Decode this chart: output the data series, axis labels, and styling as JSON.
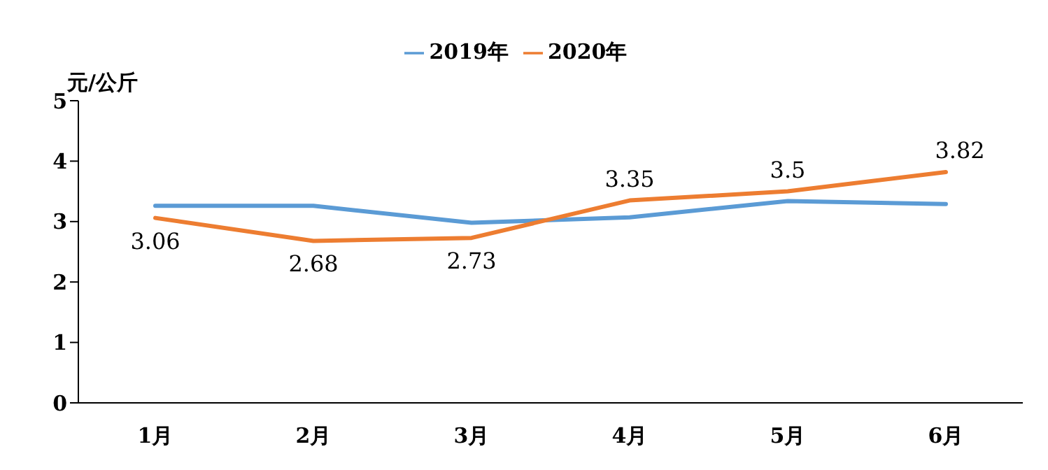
{
  "chart_data": {
    "type": "line",
    "ylabel": "元/公斤",
    "categories": [
      "1月",
      "2月",
      "3月",
      "4月",
      "5月",
      "6月"
    ],
    "series": [
      {
        "name": "2019年",
        "color": "#5b9bd5",
        "values": [
          3.26,
          3.26,
          2.98,
          3.07,
          3.34,
          3.29
        ]
      },
      {
        "name": "2020年",
        "color": "#ed7d31",
        "values": [
          3.06,
          2.68,
          2.73,
          3.35,
          3.5,
          3.82
        ],
        "value_labels": [
          "3.06",
          "2.68",
          "2.73",
          "3.35",
          "3.5",
          "3.82"
        ]
      }
    ],
    "ylim": [
      0,
      5
    ],
    "yticks": [
      0,
      1,
      2,
      3,
      4,
      5
    ],
    "grid": false,
    "legend": "top",
    "marker": "none",
    "line_style": "solid"
  }
}
